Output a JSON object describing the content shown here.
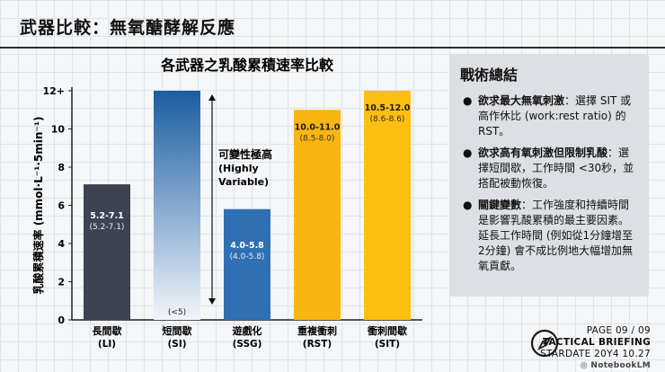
{
  "header": {
    "title": "武器比較：無氧醣酵解反應"
  },
  "summary": {
    "title": "戰術總結",
    "items": [
      {
        "bold": "欲求最大無氧刺激",
        "text": "：選擇 SIT 或高作休比 (work:rest ratio) 的 RST。"
      },
      {
        "bold": "欲求高有氧刺激但限制乳酸",
        "text": "：選擇短間歇，工作時間 <30秒，並搭配被動恢復。"
      },
      {
        "bold": "關鍵變數",
        "text": "：工作強度和持續時間是影響乳酸累積的最主要因素。延長工作時間 (例如從1分鐘增至2分鐘) 會不成比例地大幅增加無氧貢獻。"
      }
    ]
  },
  "footer": {
    "page": "PAGE 09 / 09",
    "briefing": "TACTICAL BRIEFING",
    "stardate": "STARDATE 20Y4 10.27",
    "brand": "NotebookLM",
    "icon": "compass-icon"
  },
  "chart_data": {
    "type": "bar",
    "title": "各武器之乳酸累積速率比較",
    "ylabel": "乳酸累積速率 (mmol·L⁻¹·5min⁻¹)",
    "ylim": [
      0,
      12
    ],
    "yticks": [
      "0",
      "2",
      "4",
      "6",
      "8",
      "10",
      "12+"
    ],
    "grid": false,
    "categories": [
      "長間歇\n(LI)",
      "短間歇\n(SI)",
      "遊戲化\n(SSG)",
      "重複衝刺\n(RST)",
      "衝刺間歇\n(SIT)"
    ],
    "values": [
      7.1,
      12,
      5.8,
      11.0,
      12.0
    ],
    "colors": [
      "#3d4350",
      "#1c5fa2",
      "#2f70b3",
      "#f9b510",
      "#fcbf10"
    ],
    "value_labels": [
      {
        "main": "5.2-7.1",
        "sub": "(5.2-7.1)"
      },
      {
        "main": "",
        "sub": "(<5)"
      },
      {
        "main": "4.0-5.8",
        "sub": "(4.0-5.8)"
      },
      {
        "main": "10.0-11.0",
        "sub": "(8.5-8.0)"
      },
      {
        "main": "10.5-12.0",
        "sub": "(8.6-8.6)"
      }
    ],
    "annotation": {
      "lines": [
        "可變性極高",
        "(Highly",
        "Variable)"
      ],
      "range": [
        0.8,
        12
      ]
    }
  }
}
